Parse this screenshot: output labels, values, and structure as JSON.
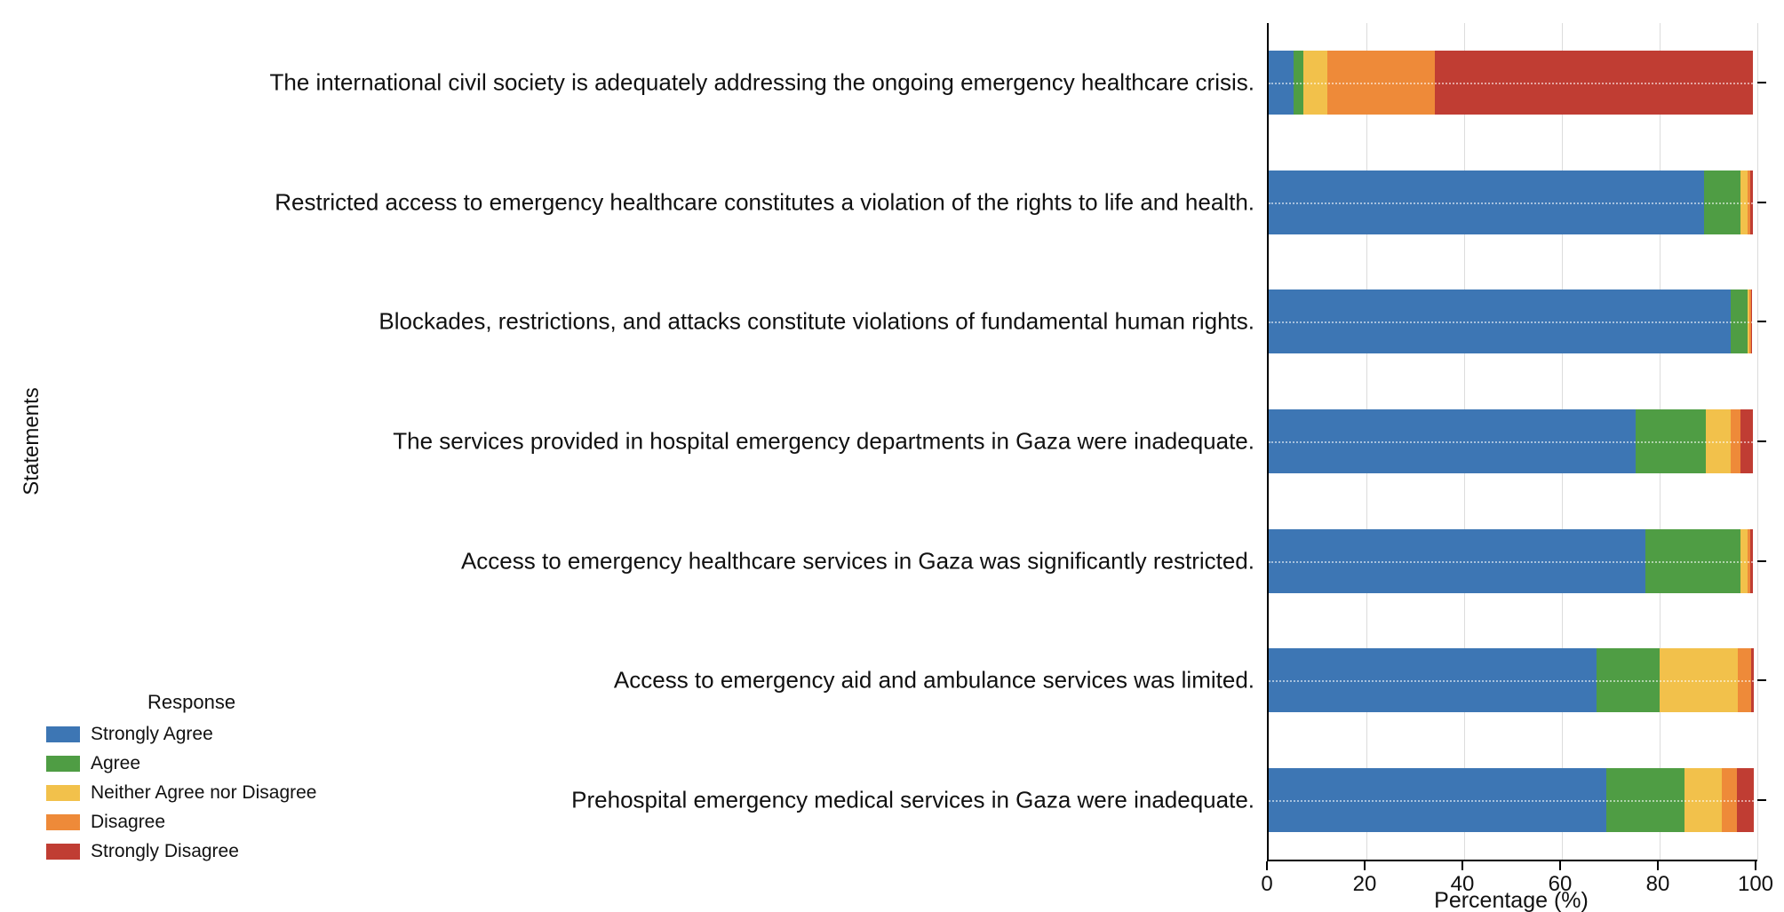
{
  "chart_data": {
    "type": "bar",
    "orientation": "horizontal",
    "stacked": true,
    "xlabel": "Percentage (%)",
    "ylabel": "Statements",
    "xlim": [
      0,
      100
    ],
    "xticks": [
      0,
      20,
      40,
      60,
      80,
      100
    ],
    "grid": "vertical-light",
    "legend": {
      "title": "Response",
      "position": "lower left"
    },
    "categories": [
      "The international civil society is adequately addressing the ongoing emergency healthcare crisis.",
      "Restricted access to emergency healthcare constitutes a violation of the rights to life and health.",
      "Blockades, restrictions, and attacks constitute violations of fundamental human rights.",
      "The services provided in hospital emergency departments in Gaza were inadequate.",
      "Access to emergency healthcare services in Gaza was significantly restricted.",
      "Access to emergency aid and ambulance services was limited.",
      "Prehospital emergency medical services in Gaza were inadequate."
    ],
    "series": [
      {
        "name": "Strongly Agree",
        "color": "#3d76b4",
        "values": [
          5,
          89,
          94.5,
          75,
          77,
          67,
          69
        ]
      },
      {
        "name": "Agree",
        "color": "#4f9d44",
        "values": [
          2,
          7.5,
          3.5,
          14.5,
          19.5,
          13,
          16
        ]
      },
      {
        "name": "Neither Agree nor Disagree",
        "color": "#f2c14b",
        "values": [
          5,
          1.5,
          0.4,
          5,
          1.5,
          16,
          7.8
        ]
      },
      {
        "name": "Disagree",
        "color": "#ee8a39",
        "values": [
          22,
          0.5,
          0.3,
          2,
          0.5,
          2.8,
          3
        ]
      },
      {
        "name": "Strongly Disagree",
        "color": "#c03d33",
        "values": [
          65,
          0.5,
          0.3,
          2.5,
          0.5,
          0.5,
          3.5
        ]
      }
    ]
  }
}
